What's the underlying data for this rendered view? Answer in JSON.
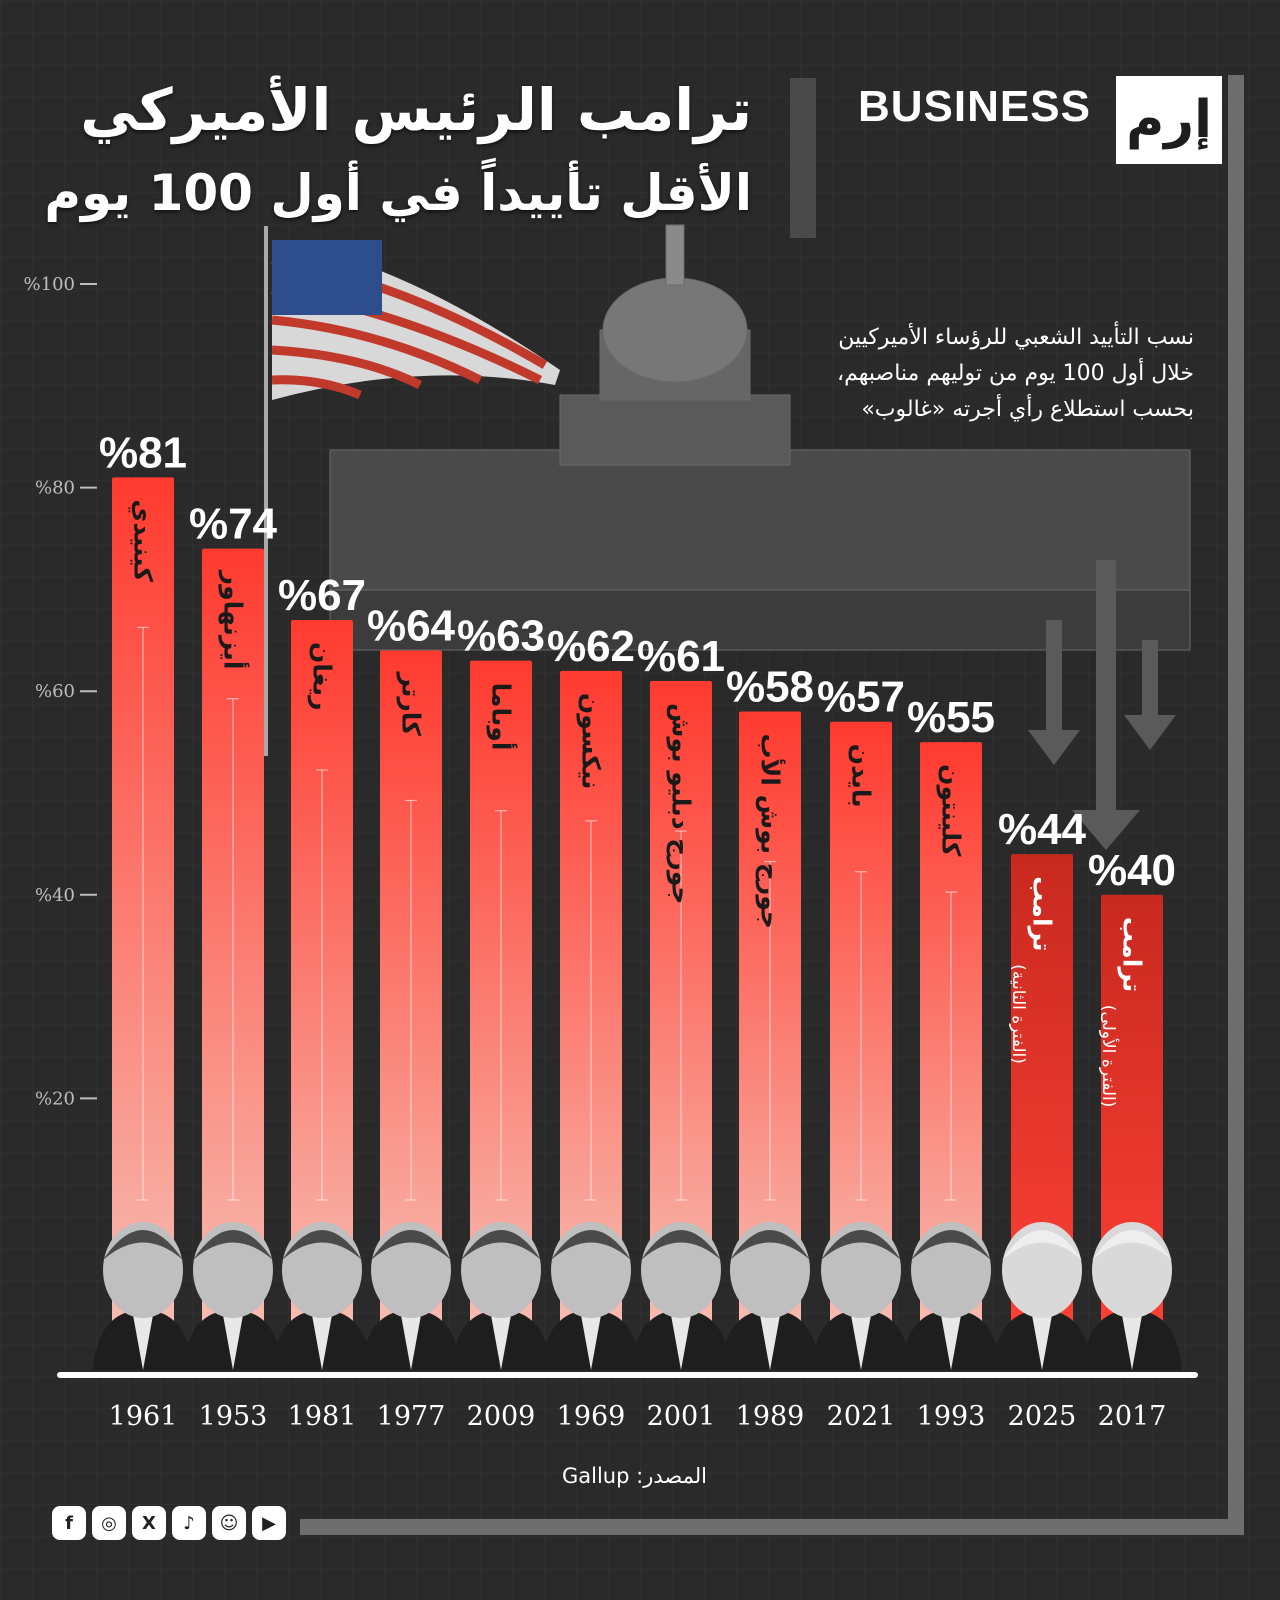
{
  "header": {
    "title_line1": "ترامب الرئيس الأميركي",
    "title_line2": "الأقل تأييداً في أول 100 يوم",
    "brand_text": "BUSINESS",
    "logo_text": "إرم"
  },
  "subtitle": {
    "line1": "نسب التأييد الشعبي للرؤساء الأميركيين",
    "line2": "خلال أول 100 يوم من توليهم مناصبهم،",
    "line3": "بحسب استطلاع رأي أجرته «غالوب»"
  },
  "source": "المصدر: Gallup",
  "socials": [
    {
      "icon": "facebook-icon",
      "glyph": "f"
    },
    {
      "icon": "instagram-icon",
      "glyph": "◎"
    },
    {
      "icon": "x-icon",
      "glyph": "X"
    },
    {
      "icon": "tiktok-icon",
      "glyph": "♪"
    },
    {
      "icon": "snapchat-icon",
      "glyph": "☺"
    },
    {
      "icon": "youtube-icon",
      "glyph": "▶"
    }
  ],
  "colors": {
    "bar_top": "#ff3a2f",
    "bar_bottom": "#f7bfb4",
    "trump_bar_top": "#c8291f",
    "trump_bar_bottom": "#ff4136",
    "background": "#2b2b2b"
  },
  "chart_data": {
    "type": "bar",
    "categories": [
      "كينيدي",
      "أيزنهاور",
      "ريغان",
      "كارتر",
      "أوباما",
      "نيكسون",
      "جورج دبليو بوش",
      "جورج بوش الأب",
      "بايدن",
      "كلينتون",
      "ترامب",
      "ترامب"
    ],
    "subcategories": [
      "",
      "",
      "",
      "",
      "",
      "",
      "",
      "",
      "",
      "",
      "(الفترة الثانية)",
      "(الفترة الأولى)"
    ],
    "years": [
      "1961",
      "1953",
      "1981",
      "1977",
      "2009",
      "1969",
      "2001",
      "1989",
      "2021",
      "1993",
      "2025",
      "2017"
    ],
    "values": [
      81,
      74,
      67,
      64,
      63,
      62,
      61,
      58,
      57,
      55,
      44,
      40
    ],
    "value_labels": [
      "%81",
      "%74",
      "%67",
      "%64",
      "%63",
      "%62",
      "%61",
      "%58",
      "%57",
      "%55",
      "%44",
      "%40"
    ],
    "y_ticks": [
      20,
      40,
      60,
      80,
      100
    ],
    "y_tick_labels": [
      "%20",
      "%40",
      "%60",
      "%80",
      "%100"
    ],
    "ylim": [
      0,
      100
    ],
    "grid": false
  }
}
